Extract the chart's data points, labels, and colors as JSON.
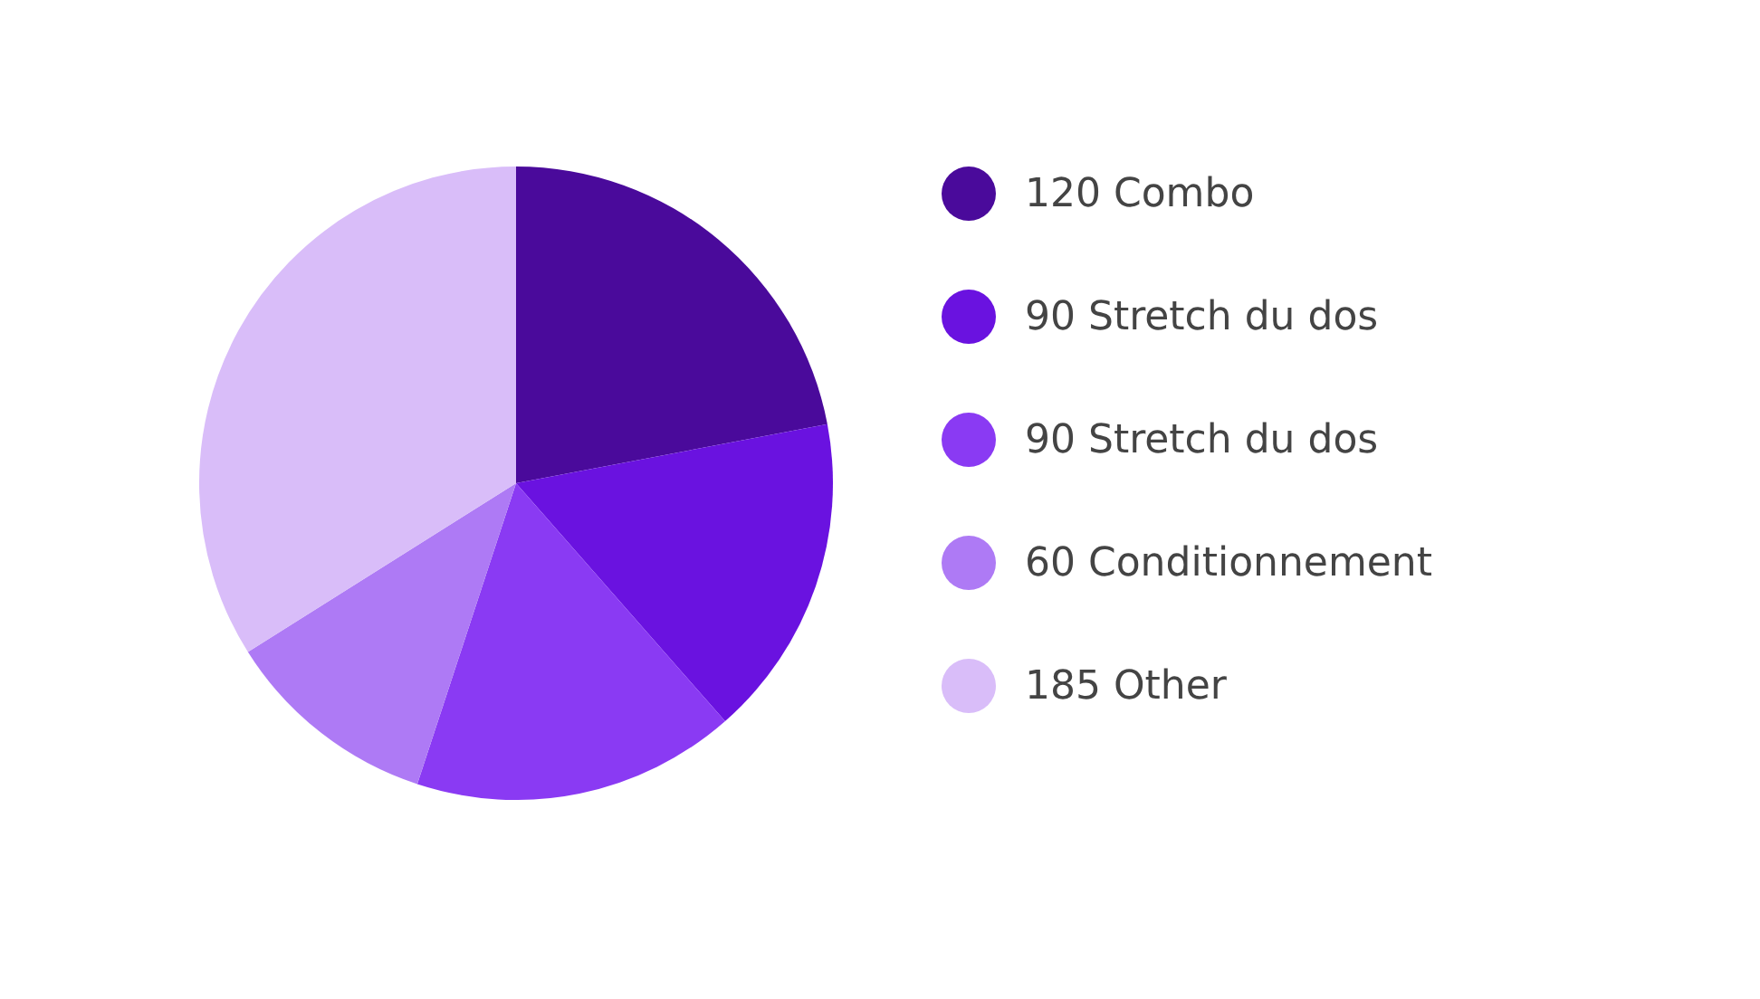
{
  "chart_data": {
    "type": "pie",
    "categories": [
      "120 Combo",
      "90 Stretch du dos",
      "90 Stretch du dos",
      "60 Conditionnement",
      "185 Other"
    ],
    "values": [
      120,
      90,
      90,
      60,
      185
    ],
    "colors": [
      "#4a0a9b",
      "#6a12e0",
      "#8a3af3",
      "#ae7af5",
      "#d9bdf9"
    ],
    "legend": "right"
  }
}
